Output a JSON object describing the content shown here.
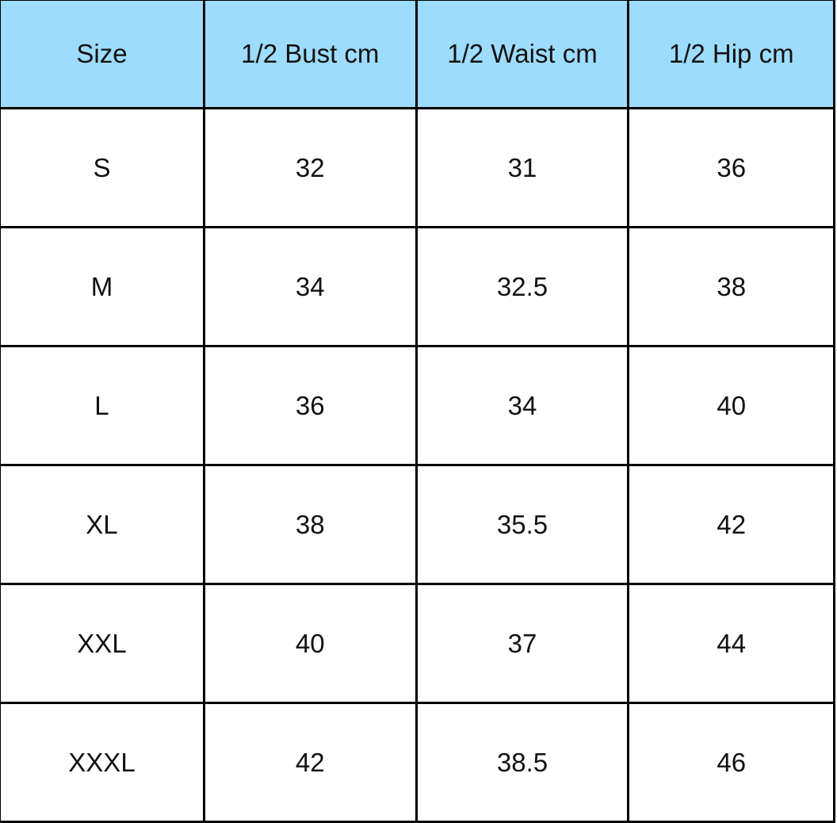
{
  "table": {
    "header_color": "#9ddcfc",
    "headers": [
      "Size",
      "1/2 Bust cm",
      "1/2 Waist cm",
      "1/2 Hip cm"
    ],
    "rows": [
      [
        "S",
        "32",
        "31",
        "36"
      ],
      [
        "M",
        "34",
        "32.5",
        "38"
      ],
      [
        "L",
        "36",
        "34",
        "40"
      ],
      [
        "XL",
        "38",
        "35.5",
        "42"
      ],
      [
        "XXL",
        "40",
        "37",
        "44"
      ],
      [
        "XXXL",
        "42",
        "38.5",
        "46"
      ]
    ]
  }
}
